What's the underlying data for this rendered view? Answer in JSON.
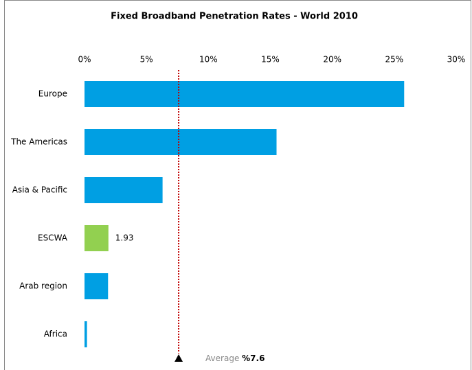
{
  "chart_data": {
    "type": "hbar",
    "title": "Fixed Broadband Penetration Rates - World 2010",
    "categories": [
      "Europe",
      "The Americas",
      "Asia & Pacific",
      "ESCWA",
      "Arab region",
      "Africa"
    ],
    "values": [
      25.8,
      15.5,
      6.3,
      1.93,
      1.9,
      0.2
    ],
    "value_labels": [
      null,
      null,
      null,
      "1.93",
      null,
      null
    ],
    "colors": [
      "#009fe3",
      "#009fe3",
      "#009fe3",
      "#92d050",
      "#009fe3",
      "#009fe3"
    ],
    "xlim": [
      0,
      30
    ],
    "xticks": [
      {
        "value": 0,
        "label": "0%"
      },
      {
        "value": 5,
        "label": "5%"
      },
      {
        "value": 10,
        "label": "10%"
      },
      {
        "value": 15,
        "label": "15%"
      },
      {
        "value": 20,
        "label": "20%"
      },
      {
        "value": 25,
        "label": "25%"
      },
      {
        "value": 30,
        "label": "30%"
      }
    ],
    "average": {
      "text": "Average",
      "value": 7.6,
      "value_label": "%7.6",
      "color": "#c00000"
    }
  }
}
